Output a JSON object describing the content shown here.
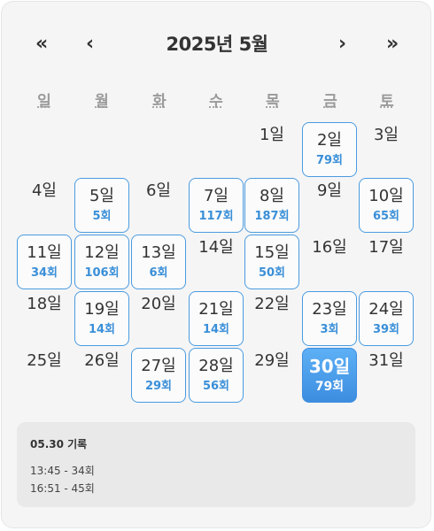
{
  "header": {
    "prev_year": "«",
    "prev_month": "‹",
    "title": "2025년 5월",
    "next_month": "›",
    "next_year": "»"
  },
  "weekdays": [
    "일",
    "월",
    "화",
    "수",
    "목",
    "금",
    "토"
  ],
  "calendar": {
    "start_offset": 4,
    "selected_day": 30,
    "days": [
      {
        "label": "1일",
        "count": ""
      },
      {
        "label": "2일",
        "count": "79회"
      },
      {
        "label": "3일",
        "count": ""
      },
      {
        "label": "4일",
        "count": ""
      },
      {
        "label": "5일",
        "count": "5회"
      },
      {
        "label": "6일",
        "count": ""
      },
      {
        "label": "7일",
        "count": "117회"
      },
      {
        "label": "8일",
        "count": "187회"
      },
      {
        "label": "9일",
        "count": ""
      },
      {
        "label": "10일",
        "count": "65회"
      },
      {
        "label": "11일",
        "count": "34회"
      },
      {
        "label": "12일",
        "count": "106회"
      },
      {
        "label": "13일",
        "count": "6회"
      },
      {
        "label": "14일",
        "count": ""
      },
      {
        "label": "15일",
        "count": "50회"
      },
      {
        "label": "16일",
        "count": ""
      },
      {
        "label": "17일",
        "count": ""
      },
      {
        "label": "18일",
        "count": ""
      },
      {
        "label": "19일",
        "count": "14회"
      },
      {
        "label": "20일",
        "count": ""
      },
      {
        "label": "21일",
        "count": "14회"
      },
      {
        "label": "22일",
        "count": ""
      },
      {
        "label": "23일",
        "count": "3회"
      },
      {
        "label": "24일",
        "count": "39회"
      },
      {
        "label": "25일",
        "count": ""
      },
      {
        "label": "26일",
        "count": ""
      },
      {
        "label": "27일",
        "count": "29회"
      },
      {
        "label": "28일",
        "count": "56회"
      },
      {
        "label": "29일",
        "count": ""
      },
      {
        "label": "30일",
        "count": "79회"
      },
      {
        "label": "31일",
        "count": ""
      }
    ]
  },
  "records": {
    "title": "05.30 기록",
    "lines": [
      "13:45 - 34회",
      "16:51 - 45회"
    ]
  },
  "colors": {
    "accent": "#3a8fd8",
    "selected_bg": "#4a9be9"
  }
}
